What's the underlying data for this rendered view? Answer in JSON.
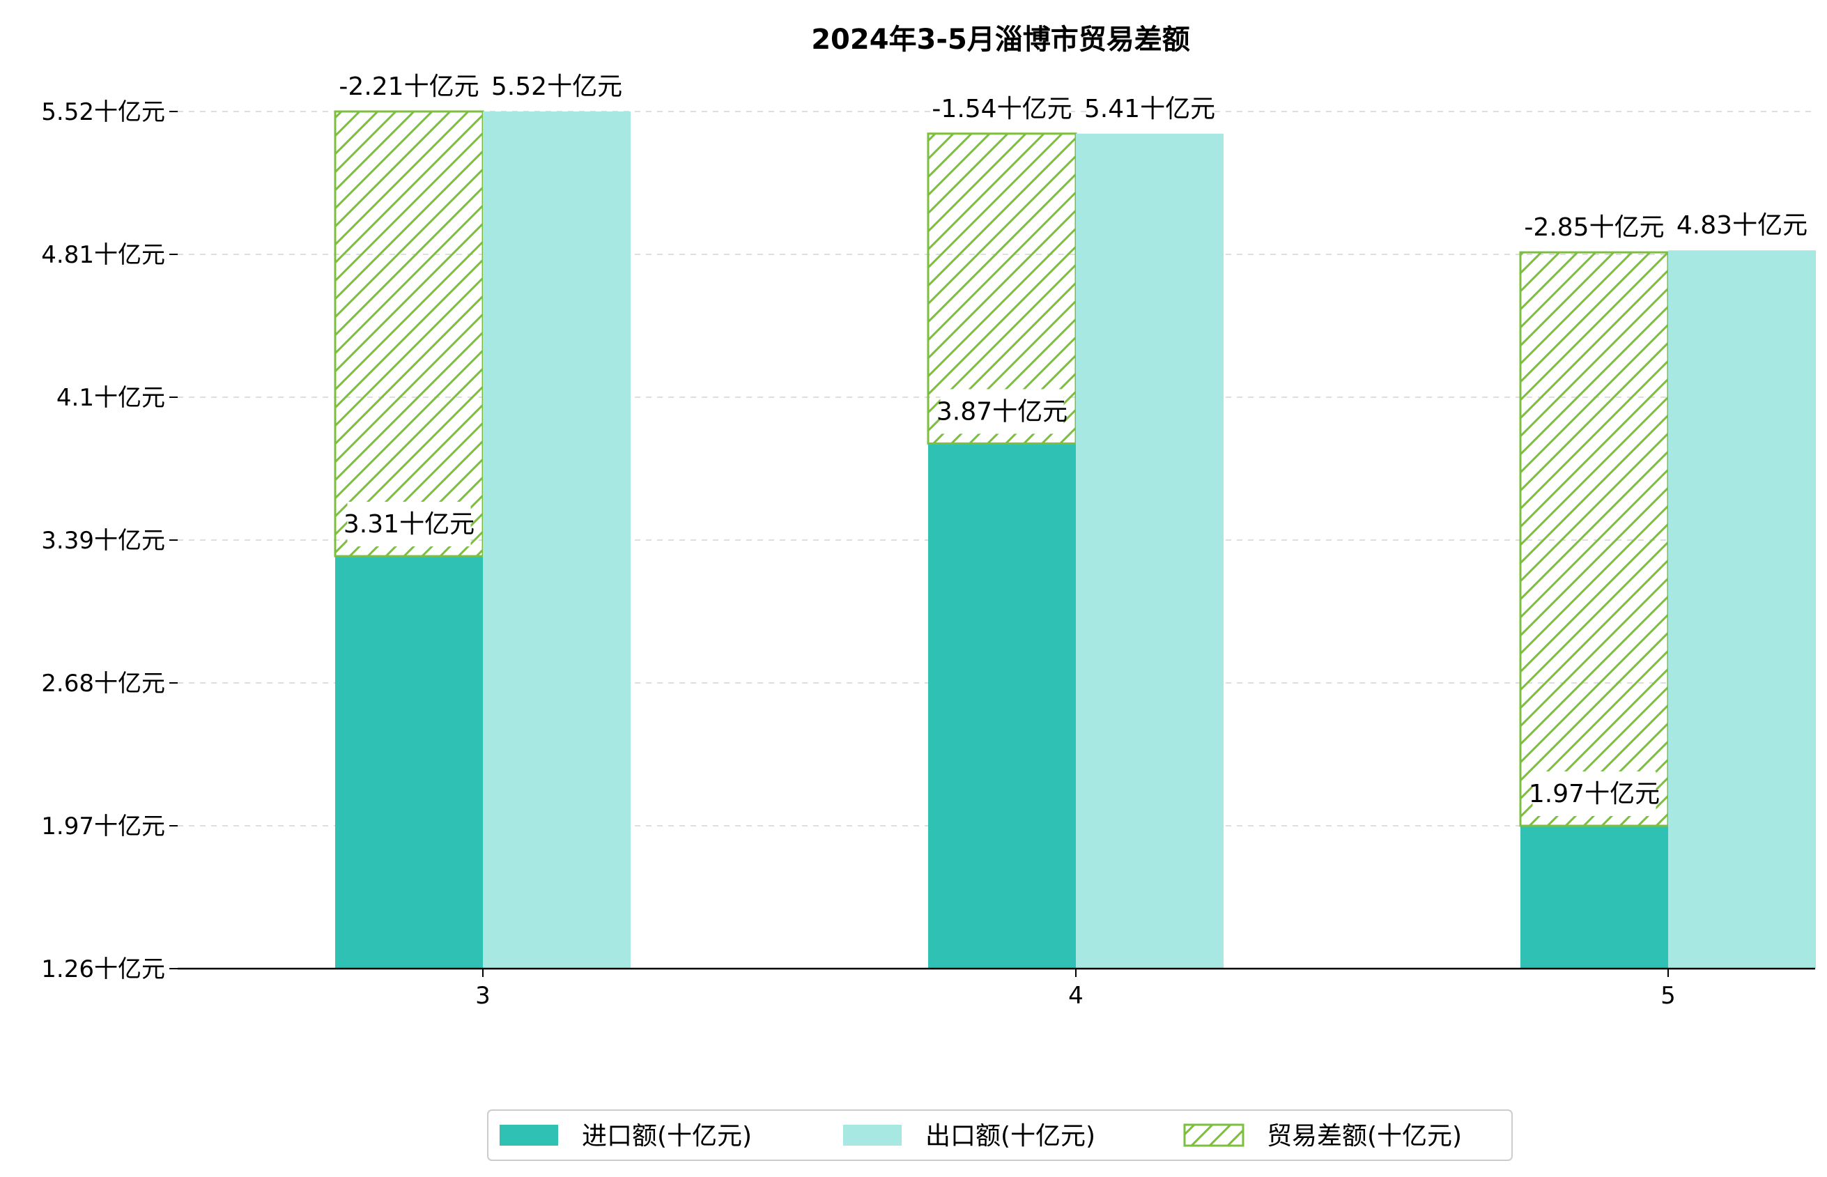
{
  "chart_data": {
    "type": "bar",
    "title": "2024年3-5月淄博市贸易差额",
    "xlabel": "",
    "ylabel": "",
    "categories": [
      "3",
      "4",
      "5"
    ],
    "y_ticks": [
      "1.26十亿元",
      "1.97十亿元",
      "2.68十亿元",
      "3.39十亿元",
      "4.1十亿元",
      "4.81十亿元",
      "5.52十亿元"
    ],
    "y_tick_values": [
      1.26,
      1.97,
      2.68,
      3.39,
      4.1,
      4.81,
      5.52
    ],
    "ylim": [
      1.26,
      5.52
    ],
    "grid": "horizontal dashed",
    "legend_position": "bottom-center",
    "series": [
      {
        "name": "进口额(十亿元)",
        "values": [
          3.31,
          3.87,
          1.97
        ],
        "labels": [
          "3.31十亿元",
          "3.87十亿元",
          "1.97十亿元"
        ],
        "color": "#2ec1b4"
      },
      {
        "name": "出口额(十亿元)",
        "values": [
          5.52,
          5.41,
          4.83
        ],
        "labels": [
          "5.52十亿元",
          "5.41十亿元",
          "4.83十亿元"
        ],
        "color": "#a8e8e2"
      },
      {
        "name": "贸易差额(十亿元)",
        "values": [
          -2.21,
          -1.54,
          -2.85
        ],
        "labels": [
          "-2.21十亿元",
          "-1.54十亿元",
          "-2.85十亿元"
        ],
        "color": "#7cbf3f",
        "style": "hatched, stacked on 进口额"
      }
    ]
  }
}
